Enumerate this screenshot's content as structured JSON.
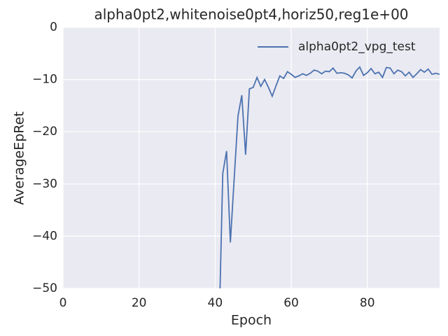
{
  "chart_data": {
    "type": "line",
    "title": "alpha0pt2,whitenoise0pt4,horiz50,reg1e+00",
    "x_label": "Epoch",
    "y_label": "AverageEpRet",
    "x": [
      41,
      42,
      43,
      44,
      45,
      46,
      47,
      48,
      49,
      50,
      51,
      52,
      53,
      54,
      55,
      56,
      57,
      58,
      59,
      60,
      61,
      62,
      63,
      64,
      65,
      66,
      67,
      68,
      69,
      70,
      71,
      72,
      73,
      74,
      75,
      76,
      77,
      78,
      79,
      80,
      81,
      82,
      83,
      84,
      85,
      86,
      87,
      88,
      89,
      90,
      91,
      92,
      93,
      94,
      95,
      96,
      97,
      98,
      99
    ],
    "series": [
      {
        "name": "alpha0pt2_vpg_test",
        "color": "#4c72b0",
        "values": [
          -59,
          -28,
          -23.7,
          -41.2,
          -29,
          -17,
          -13,
          -24.4,
          -11.8,
          -11.5,
          -9.6,
          -11.3,
          -10,
          -11.5,
          -13.2,
          -11.2,
          -9.3,
          -9.8,
          -8.5,
          -9,
          -9.6,
          -9.3,
          -8.9,
          -9.2,
          -8.8,
          -8.2,
          -8.4,
          -8.9,
          -8.4,
          -8.5,
          -7.8,
          -8.8,
          -8.7,
          -8.8,
          -9.1,
          -9.7,
          -8.4,
          -7.6,
          -9.2,
          -8.7,
          -7.9,
          -8.9,
          -8.6,
          -9.6,
          -7.7,
          -7.8,
          -8.9,
          -8.2,
          -8.5,
          -9.3,
          -8.6,
          -9.6,
          -8.9,
          -8.1,
          -8.6,
          -8,
          -9,
          -8.8,
          -9
        ]
      }
    ],
    "xlim": [
      0,
      99
    ],
    "ylim": [
      -50,
      0
    ],
    "xticks": [
      0,
      20,
      40,
      60,
      80
    ],
    "yticks": [
      0,
      {
        "value": -10,
        "label": "−10"
      },
      {
        "value": -20,
        "label": "−20"
      },
      {
        "value": -30,
        "label": "−30"
      },
      {
        "value": -40,
        "label": "−40"
      },
      {
        "value": -50,
        "label": "−50"
      }
    ],
    "grid": true,
    "legend": "upper right"
  }
}
